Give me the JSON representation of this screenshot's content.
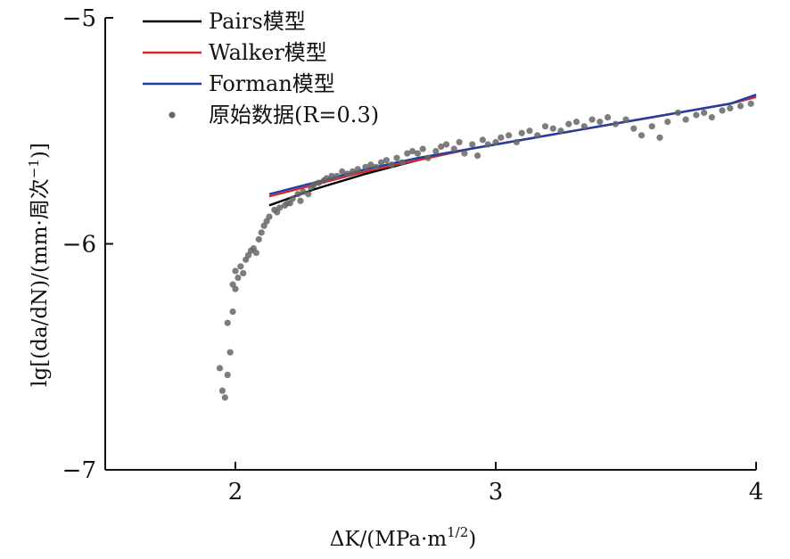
{
  "chart_data": {
    "type": "scatter",
    "xlabel": "ΔK/(MPa·m^(1/2))",
    "ylabel": "lg[(da/dN)/(mm·周次⁻¹)]",
    "xlim": [
      1.5,
      4.0
    ],
    "ylim": [
      -7,
      -5
    ],
    "xticks": [
      2,
      3,
      4
    ],
    "yticks": [
      -5,
      -6,
      -7
    ],
    "xtick_labels": [
      "2",
      "3",
      "4"
    ],
    "ytick_labels": [
      "−5",
      "−6",
      "−7"
    ],
    "grid": false,
    "legend_position": "top-left",
    "series": [
      {
        "name": "Pairs模型",
        "kind": "line",
        "color": "#000000",
        "x": [
          2.13,
          2.3,
          2.5,
          2.7,
          2.9,
          3.1,
          3.3,
          3.5,
          3.7,
          3.9,
          4.0
        ],
        "y": [
          -5.83,
          -5.76,
          -5.69,
          -5.63,
          -5.58,
          -5.54,
          -5.5,
          -5.46,
          -5.42,
          -5.38,
          -5.35
        ]
      },
      {
        "name": "Walker模型",
        "kind": "line",
        "color": "#d62728",
        "x": [
          2.13,
          2.3,
          2.5,
          2.7,
          2.9,
          3.1,
          3.3,
          3.5,
          3.7,
          3.9,
          4.0
        ],
        "y": [
          -5.79,
          -5.74,
          -5.68,
          -5.63,
          -5.58,
          -5.54,
          -5.5,
          -5.46,
          -5.42,
          -5.38,
          -5.35
        ]
      },
      {
        "name": "Forman模型",
        "kind": "line",
        "color": "#1f3fa6",
        "x": [
          2.13,
          2.3,
          2.5,
          2.7,
          2.9,
          3.1,
          3.3,
          3.5,
          3.7,
          3.9,
          4.0
        ],
        "y": [
          -5.78,
          -5.73,
          -5.67,
          -5.62,
          -5.58,
          -5.54,
          -5.5,
          -5.46,
          -5.42,
          -5.38,
          -5.34
        ]
      },
      {
        "name": "原始数据(R=0.3)",
        "kind": "scatter",
        "color": "#666666",
        "x": [
          1.94,
          1.95,
          1.96,
          1.97,
          1.98,
          1.97,
          1.99,
          2.0,
          1.99,
          2.0,
          2.01,
          2.02,
          2.03,
          2.04,
          2.05,
          2.06,
          2.07,
          2.08,
          2.09,
          2.1,
          2.11,
          2.12,
          2.13,
          2.15,
          2.16,
          2.17,
          2.19,
          2.2,
          2.21,
          2.22,
          2.24,
          2.25,
          2.26,
          2.28,
          2.29,
          2.3,
          2.32,
          2.34,
          2.35,
          2.37,
          2.39,
          2.41,
          2.43,
          2.45,
          2.47,
          2.5,
          2.52,
          2.54,
          2.56,
          2.58,
          2.6,
          2.62,
          2.64,
          2.66,
          2.68,
          2.7,
          2.72,
          2.74,
          2.77,
          2.79,
          2.81,
          2.84,
          2.86,
          2.88,
          2.91,
          2.93,
          2.95,
          2.97,
          3.0,
          3.02,
          3.05,
          3.08,
          3.1,
          3.13,
          3.16,
          3.19,
          3.22,
          3.25,
          3.28,
          3.31,
          3.34,
          3.37,
          3.4,
          3.43,
          3.46,
          3.5,
          3.53,
          3.56,
          3.6,
          3.63,
          3.66,
          3.7,
          3.73,
          3.77,
          3.8,
          3.83,
          3.87,
          3.9,
          3.94,
          3.98
        ],
        "y": [
          -6.55,
          -6.65,
          -6.68,
          -6.58,
          -6.48,
          -6.35,
          -6.3,
          -6.2,
          -6.18,
          -6.12,
          -6.15,
          -6.1,
          -6.13,
          -6.07,
          -6.05,
          -6.03,
          -6.02,
          -6.04,
          -5.98,
          -5.95,
          -5.92,
          -5.9,
          -5.88,
          -5.85,
          -5.86,
          -5.84,
          -5.83,
          -5.82,
          -5.82,
          -5.8,
          -5.78,
          -5.81,
          -5.77,
          -5.78,
          -5.75,
          -5.74,
          -5.73,
          -5.72,
          -5.71,
          -5.7,
          -5.7,
          -5.68,
          -5.69,
          -5.68,
          -5.67,
          -5.66,
          -5.65,
          -5.66,
          -5.64,
          -5.63,
          -5.65,
          -5.62,
          -5.64,
          -5.6,
          -5.59,
          -5.6,
          -5.58,
          -5.62,
          -5.59,
          -5.57,
          -5.56,
          -5.58,
          -5.55,
          -5.6,
          -5.56,
          -5.61,
          -5.54,
          -5.56,
          -5.55,
          -5.53,
          -5.52,
          -5.55,
          -5.51,
          -5.5,
          -5.52,
          -5.48,
          -5.49,
          -5.5,
          -5.47,
          -5.46,
          -5.48,
          -5.45,
          -5.46,
          -5.44,
          -5.47,
          -5.45,
          -5.49,
          -5.52,
          -5.48,
          -5.53,
          -5.46,
          -5.42,
          -5.45,
          -5.43,
          -5.42,
          -5.44,
          -5.41,
          -5.4,
          -5.39,
          -5.38
        ]
      }
    ]
  }
}
